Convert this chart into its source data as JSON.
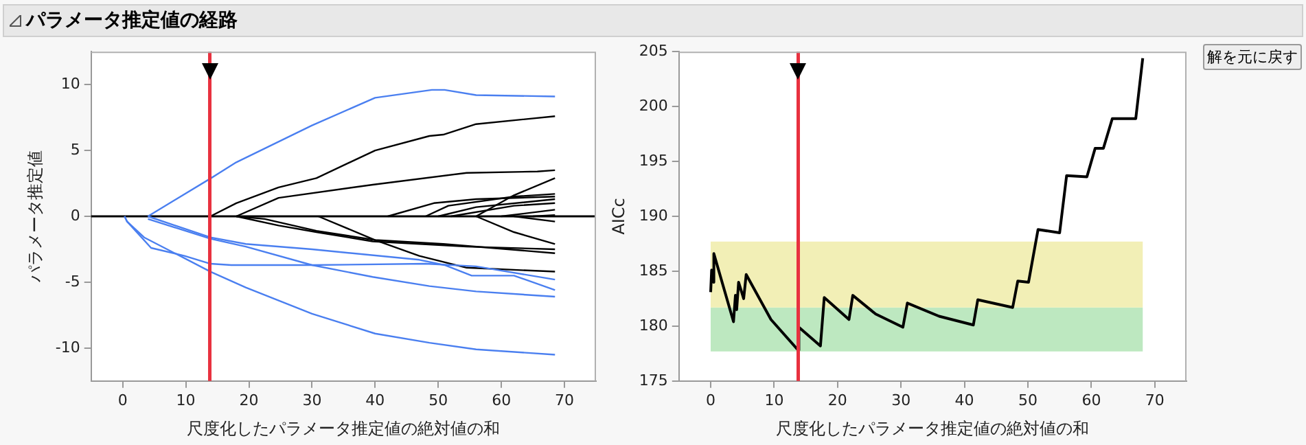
{
  "chart_data": [
    {
      "type": "line",
      "title": "パラメータ推定値の経路",
      "xlabel": "尺度化したパラメータ推定値の絶対値の和",
      "ylabel": "パラメータ推定値",
      "xlim": [
        -5,
        75
      ],
      "xticks": [
        0,
        10,
        20,
        30,
        40,
        50,
        60,
        70
      ],
      "ylim": [
        -12.5,
        12.5
      ],
      "yticks": [
        -10,
        -5,
        0,
        5,
        10
      ],
      "grid": false,
      "legend": false,
      "marker": "none",
      "line_style": "solid",
      "ref_lines": [
        {
          "axis": "y",
          "value": 0,
          "color": "#000000"
        },
        {
          "axis": "x",
          "value": 13.8,
          "color": "#e8313f"
        }
      ],
      "series": [
        {
          "color": "#4a7ff0",
          "x": [
            4,
            14,
            18,
            30,
            40,
            49,
            51,
            56,
            68.5
          ],
          "values": [
            0,
            2.9,
            4.1,
            6.9,
            9.0,
            9.6,
            9.6,
            9.2,
            9.1
          ]
        },
        {
          "color": "#4a7ff0",
          "x": [
            0.3,
            0.7,
            4.5,
            9.8,
            13.9,
            17.2,
            30,
            48,
            56,
            68.5
          ],
          "values": [
            0,
            -0.4,
            -2.4,
            -3.0,
            -3.6,
            -3.7,
            -3.7,
            -3.6,
            -3.8,
            -4.8
          ]
        },
        {
          "color": "#4a7ff0",
          "x": [
            0.3,
            0.7,
            3.4,
            13.9,
            19.5,
            30,
            40,
            48.6,
            56,
            68.5
          ],
          "values": [
            0,
            -0.4,
            -1.6,
            -4.2,
            -5.4,
            -7.4,
            -8.9,
            -9.6,
            -10.1,
            -10.5
          ]
        },
        {
          "color": "#4a7ff0",
          "x": [
            4,
            13.9,
            19.5,
            30,
            47,
            51,
            55.3,
            62,
            68.5
          ],
          "values": [
            0,
            -1.6,
            -2.1,
            -2.5,
            -3.3,
            -3.7,
            -4.5,
            -4.5,
            -5.6
          ]
        },
        {
          "color": "#4a7ff0",
          "x": [
            4,
            13.9,
            19.5,
            30,
            39.6,
            48.6,
            56,
            68.5
          ],
          "values": [
            -0.2,
            -1.7,
            -2.3,
            -3.7,
            -4.6,
            -5.3,
            -5.7,
            -6.1
          ]
        },
        {
          "color": "#000000",
          "x": [
            13.9,
            18,
            24.7,
            30.7,
            40,
            48.6,
            50.8,
            56,
            68.5
          ],
          "values": [
            0,
            1.0,
            2.2,
            2.9,
            5.0,
            6.1,
            6.2,
            7.0,
            7.6
          ]
        },
        {
          "color": "#000000",
          "x": [
            18,
            24.7,
            39.6,
            54.5,
            65.7,
            68.5
          ],
          "values": [
            0,
            1.4,
            2.4,
            3.3,
            3.4,
            3.5
          ]
        },
        {
          "color": "#000000",
          "x": [
            18,
            24.7,
            30.7,
            39.6,
            54.5,
            68.5
          ],
          "values": [
            0,
            -0.7,
            -1.2,
            -1.9,
            -2.3,
            -2.5
          ]
        },
        {
          "color": "#000000",
          "x": [
            18,
            22.5,
            30.7,
            40,
            50.8,
            68.5
          ],
          "values": [
            0,
            -0.2,
            -1.1,
            -1.8,
            -2.1,
            -2.8
          ]
        },
        {
          "color": "#000000",
          "x": [
            31,
            40,
            47,
            54.5,
            68.5
          ],
          "values": [
            0,
            -1.8,
            -3.0,
            -3.9,
            -4.2
          ]
        },
        {
          "color": "#000000",
          "x": [
            42,
            49.3,
            56,
            68.5
          ],
          "values": [
            0,
            1.0,
            1.3,
            1.5
          ]
        },
        {
          "color": "#000000",
          "x": [
            48,
            51.6,
            62,
            68.5
          ],
          "values": [
            0,
            0.8,
            1.5,
            1.7
          ]
        },
        {
          "color": "#000000",
          "x": [
            50,
            56,
            68.5
          ],
          "values": [
            0,
            0.7,
            1.3
          ]
        },
        {
          "color": "#000000",
          "x": [
            52,
            62,
            68.5
          ],
          "values": [
            0,
            0.8,
            1.0
          ]
        },
        {
          "color": "#000000",
          "x": [
            56,
            62,
            68.5
          ],
          "values": [
            0,
            1.6,
            2.9
          ]
        },
        {
          "color": "#000000",
          "x": [
            56,
            62,
            68.5
          ],
          "values": [
            0,
            -1.2,
            -2.1
          ]
        },
        {
          "color": "#000000",
          "x": [
            60,
            68.5
          ],
          "values": [
            0,
            0.5
          ]
        },
        {
          "color": "#000000",
          "x": [
            62,
            68.5
          ],
          "values": [
            0,
            -0.4
          ]
        },
        {
          "color": "#000000",
          "x": [
            65,
            68.5
          ],
          "values": [
            0,
            0.1
          ]
        }
      ]
    },
    {
      "type": "line",
      "xlabel": "尺度化したパラメータ推定値の絶対値の和",
      "ylabel": "AICc",
      "xlim": [
        -5,
        75
      ],
      "xticks": [
        0,
        10,
        20,
        30,
        40,
        50,
        60,
        70
      ],
      "ylim": [
        175,
        205
      ],
      "yticks": [
        175,
        180,
        185,
        190,
        195,
        200,
        205
      ],
      "grid": false,
      "legend": false,
      "marker": "none",
      "line_style": "solid",
      "annotations": [
        "解を元に戻す"
      ],
      "bands": [
        {
          "axis": "y",
          "from": 177.7,
          "to": 181.7,
          "color": "#bde8c0"
        },
        {
          "axis": "y",
          "from": 181.7,
          "to": 187.7,
          "color": "#f2efb6"
        }
      ],
      "ref_lines": [
        {
          "axis": "x",
          "value": 13.8,
          "color": "#e8313f"
        }
      ],
      "series": [
        {
          "color": "#000000",
          "x": [
            0,
            0.15,
            0.45,
            0.5,
            3.6,
            3.9,
            4.1,
            4.4,
            5.2,
            5.6,
            9.5,
            13.8,
            13.9,
            17.3,
            17.9,
            21.8,
            22.4,
            26,
            30.3,
            31.0,
            36,
            41.4,
            42.1,
            47.6,
            48.4,
            50.1,
            51.6,
            55.0,
            56.1,
            59.3,
            60.6,
            61.9,
            63.3,
            67.0,
            68.1
          ],
          "values": [
            183.1,
            185.1,
            184.0,
            186.6,
            180.4,
            182.8,
            181.5,
            184.0,
            182.5,
            184.7,
            180.6,
            177.8,
            179.9,
            178.2,
            182.6,
            180.6,
            182.8,
            181.1,
            179.9,
            182.1,
            180.9,
            180.1,
            182.4,
            181.7,
            184.1,
            184.0,
            188.8,
            188.5,
            193.7,
            193.6,
            196.2,
            196.2,
            198.9,
            198.9,
            204.4
          ]
        }
      ]
    }
  ]
}
